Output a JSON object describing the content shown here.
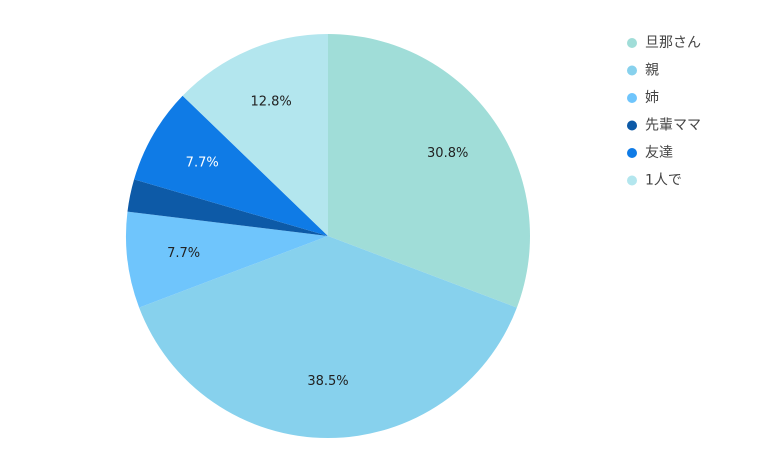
{
  "chart_data": {
    "type": "pie",
    "categories": [
      "旦那さん",
      "親",
      "姉",
      "先輩ママ",
      "友達",
      "1人で"
    ],
    "values": [
      30.8,
      38.5,
      7.7,
      2.6,
      7.7,
      12.8
    ],
    "value_labels": [
      "30.8%",
      "38.5%",
      "7.7%",
      null,
      "7.7%",
      "12.8%"
    ],
    "colors": [
      "#a0ddd8",
      "#87d1ed",
      "#6fc5fc",
      "#0d5aa7",
      "#0f7be6",
      "#b3e6ee"
    ],
    "legend": "right"
  }
}
